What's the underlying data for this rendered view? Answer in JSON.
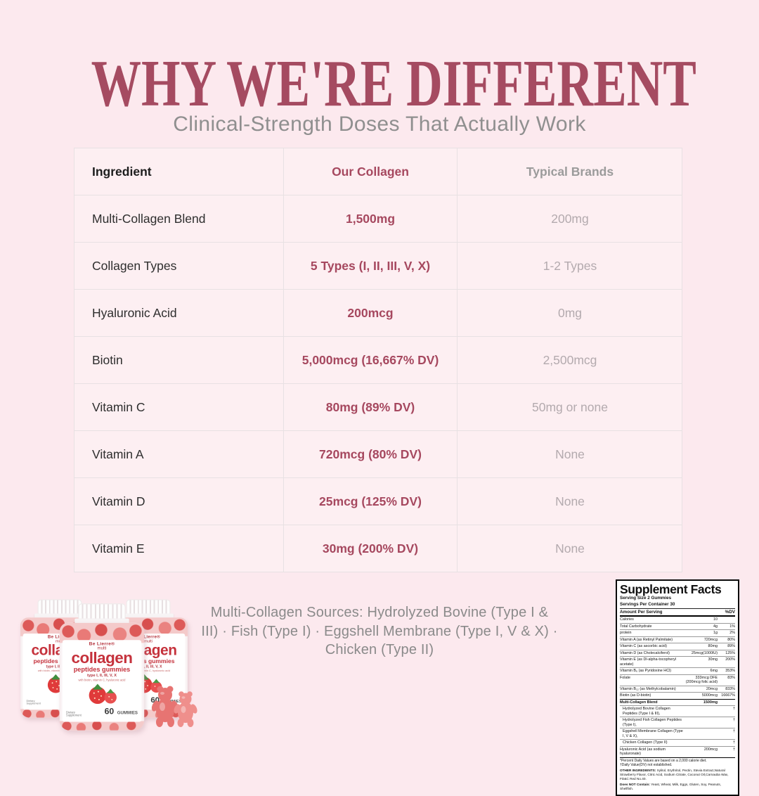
{
  "header": {
    "title": "WHY WE'RE DIFFERENT",
    "subtitle": "Clinical-Strength Doses That Actually Work"
  },
  "colors": {
    "background": "#fce9ee",
    "accent_maroon": "#a6485f",
    "table_cell": "#fdeff2",
    "gray_text": "#9b9b9b",
    "typical_value_gray": "#b3aaae"
  },
  "table": {
    "headers": [
      "Ingredient",
      "Our Collagen",
      "Typical Brands"
    ],
    "rows": [
      {
        "ingredient": "Multi-Collagen Blend",
        "ours": "1,500mg",
        "typical": "200mg"
      },
      {
        "ingredient": "Collagen Types",
        "ours": "5 Types (I, II, III, V, X)",
        "typical": "1-2 Types"
      },
      {
        "ingredient": "Hyaluronic Acid",
        "ours": "200mcg",
        "typical": "0mg"
      },
      {
        "ingredient": "Biotin",
        "ours": "5,000mcg (16,667% DV)",
        "typical": "2,500mcg"
      },
      {
        "ingredient": "Vitamin C",
        "ours": "80mg (89% DV)",
        "typical": "50mg or none"
      },
      {
        "ingredient": "Vitamin A",
        "ours": "720mcg (80% DV)",
        "typical": "None"
      },
      {
        "ingredient": "Vitamin D",
        "ours": "25mcg (125% DV)",
        "typical": "None"
      },
      {
        "ingredient": "Vitamin E",
        "ours": "30mg (200% DV)",
        "typical": "None"
      }
    ]
  },
  "footer": {
    "sources_text": "Multi-Collagen Sources: Hydrolyzed Bovine (Type I & III) · Fish (Type I) · Eggshell Membrane (Type I, V & X) · Chicken (Type II)"
  },
  "product": {
    "brand": "Be Lierre®",
    "line1": "multi",
    "name": "collagen",
    "subname": "peptides gummies",
    "types": "type I, II, III, V, X",
    "tagline": "with biotin, vitamin C, hyaluronic acid",
    "supplement": "Dietary Supplement",
    "count": "60",
    "count_unit": "GUMMIES"
  },
  "supplement_facts": {
    "title": "Supplement Facts",
    "serving_size": "Serving Size 2 Gummies",
    "servings_per": "Servings Per Container 30",
    "amount_header": "Amount Per Serving",
    "dv_header": "%DV",
    "rows": [
      {
        "name": "Calories",
        "amount": "10",
        "dv": ""
      },
      {
        "name": "Total Carbohydrate",
        "amount": "4g",
        "dv": "1%"
      },
      {
        "name": "protein",
        "amount": "1g",
        "dv": "2%"
      },
      {
        "name": "Vitamin A (as Retinyl Palmitate)",
        "amount": "720mcg",
        "dv": "80%"
      },
      {
        "name": "Vitamin C (as ascorbic acid)",
        "amount": "80mg",
        "dv": "89%"
      },
      {
        "name": "Vitamin D (as Cholecalciferol)",
        "amount": "25mcg(1000IU)",
        "dv": "125%"
      },
      {
        "name": "Vitamin E (as Dl-alpha-tocopheryl acetate)",
        "amount": "30mg",
        "dv": "200%"
      },
      {
        "name": "Vitamin B₆ (as Pyridoxine HCl)",
        "amount": "6mg",
        "dv": "353%"
      },
      {
        "name": "Folate",
        "amount": "333mcg DFE (200mcg folic acid)",
        "dv": "83%"
      },
      {
        "name": "Vitamin B₁₂ (as Methylcobalamin)",
        "amount": "20mcg",
        "dv": "833%"
      },
      {
        "name": "Biotin (as D-biotin)",
        "amount": "5000mcg",
        "dv": "16667%"
      },
      {
        "name": "Multi-Collagen Blend",
        "amount": "1500mg",
        "dv": "",
        "bold": true,
        "thick": true
      },
      {
        "name": "Hydrolyzed Bovine Collagen Peptides (Type I & III),",
        "amount": "",
        "dv": "†",
        "indent": true
      },
      {
        "name": "Hydrolyzed Fish Collagen Peptides (Type I),",
        "amount": "",
        "dv": "†",
        "indent": true
      },
      {
        "name": "Eggshell Membrane Collagen (Type I, V & X),",
        "amount": "",
        "dv": "†",
        "indent": true
      },
      {
        "name": "Chicken Collagen (Type II)",
        "amount": "",
        "dv": "†",
        "indent": true
      },
      {
        "name": "Hyaluronic Acid (as sodium hyaluronate)",
        "amount": "200mcg",
        "dv": "†"
      }
    ],
    "footnote1": "*Percent Daily Values are based on a 2,000 calorie diet.",
    "footnote2": "†Daily Value(DV) not established.",
    "other_label": "OTHER INGREDIENTS: ",
    "other_text": "Xylitol, Erythritol, Pectin, Stevia Extract,Natural Strawberry Flavor, Citric Acid, Sodium Citrate, Coconut Oil,Carnauba Wax, FD&C Red No.40.",
    "dnc_label": "Does NOT Contain: ",
    "dnc_text": "Yeast, Wheat, Milk, Eggs, Gluten, Soy, Peanuts, Shellfish."
  }
}
